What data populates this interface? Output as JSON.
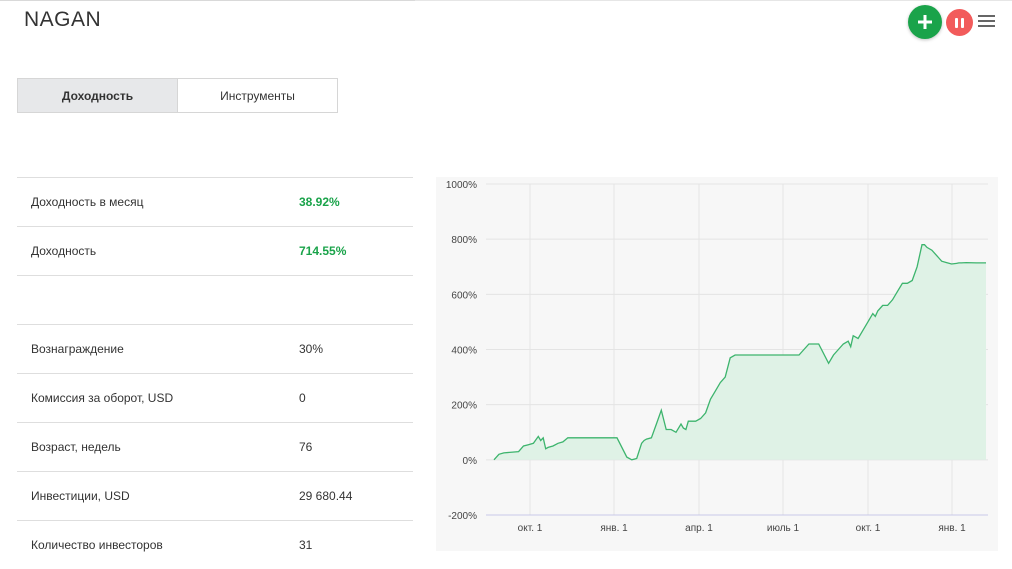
{
  "header": {
    "title": "NAGAN"
  },
  "tabs": [
    {
      "label": "Доходность"
    },
    {
      "label": "Инструменты"
    }
  ],
  "stats": {
    "monthly_label": "Доходность в месяц",
    "monthly_value": "38.92%",
    "total_label": "Доходность",
    "total_value": "714.55%",
    "fee_label": "Вознаграждение",
    "fee_value": "30%",
    "turnover_label": "Комиссия за оборот, USD",
    "turnover_value": "0",
    "age_label": "Возраст, недель",
    "age_value": "76",
    "invest_label": "Инвестиции, USD",
    "invest_value": "29 680.44",
    "investors_label": "Количество инвесторов",
    "investors_value": "31"
  },
  "colors": {
    "accent_green": "#1aa34a",
    "pause_red": "#f25b5b",
    "series_line": "#3db46d",
    "series_fill": "#dff2e6"
  },
  "chart_data": {
    "type": "area",
    "ylim": [
      -200,
      1000
    ],
    "yticks": [
      "1000%",
      "800%",
      "600%",
      "400%",
      "200%",
      "0%",
      "-200%"
    ],
    "yvalues": [
      1000,
      800,
      600,
      400,
      200,
      0,
      -200
    ],
    "xticks": [
      "окт. 1",
      "янв. 1",
      "апр. 1",
      "июль 1",
      "окт. 1",
      "янв. 1"
    ],
    "series": [
      {
        "x": [
          0,
          0.01,
          0.02,
          0.05,
          0.06,
          0.07,
          0.08,
          0.09,
          0.095,
          0.1,
          0.105,
          0.11,
          0.12,
          0.13,
          0.14,
          0.15,
          0.17,
          0.18,
          0.19,
          0.2,
          0.22,
          0.25,
          0.27,
          0.28,
          0.29,
          0.3,
          0.305,
          0.31,
          0.32,
          0.33,
          0.34,
          0.35,
          0.36,
          0.37,
          0.38,
          0.385,
          0.39,
          0.395,
          0.4,
          0.41,
          0.42,
          0.43,
          0.44,
          0.45,
          0.46,
          0.47,
          0.48,
          0.49,
          0.5,
          0.51,
          0.52,
          0.53,
          0.54,
          0.55,
          0.56,
          0.57,
          0.58,
          0.6,
          0.62,
          0.64,
          0.66,
          0.68,
          0.69,
          0.7,
          0.71,
          0.72,
          0.725,
          0.73,
          0.74,
          0.75,
          0.76,
          0.77,
          0.775,
          0.78,
          0.79,
          0.8,
          0.81,
          0.82,
          0.83,
          0.84,
          0.85,
          0.86,
          0.87,
          0.875,
          0.88,
          0.89,
          0.9,
          0.905,
          0.91,
          0.92,
          0.93,
          0.94,
          0.945,
          0.95,
          0.96,
          0.98,
          1.0
        ],
        "values": [
          0,
          20,
          25,
          30,
          50,
          55,
          60,
          85,
          70,
          80,
          40,
          45,
          50,
          60,
          65,
          80,
          80,
          80,
          80,
          80,
          80,
          80,
          10,
          0,
          5,
          60,
          70,
          75,
          80,
          130,
          180,
          110,
          110,
          100,
          130,
          115,
          110,
          140,
          140,
          140,
          150,
          170,
          220,
          250,
          280,
          300,
          370,
          380,
          380,
          380,
          380,
          380,
          380,
          380,
          380,
          380,
          380,
          380,
          380,
          420,
          420,
          350,
          380,
          400,
          420,
          430,
          410,
          450,
          440,
          470,
          500,
          530,
          520,
          540,
          560,
          560,
          580,
          610,
          640,
          640,
          650,
          700,
          780,
          780,
          770,
          760,
          740,
          730,
          720,
          715,
          710,
          712,
          714,
          714,
          715,
          714,
          714
        ]
      }
    ]
  }
}
